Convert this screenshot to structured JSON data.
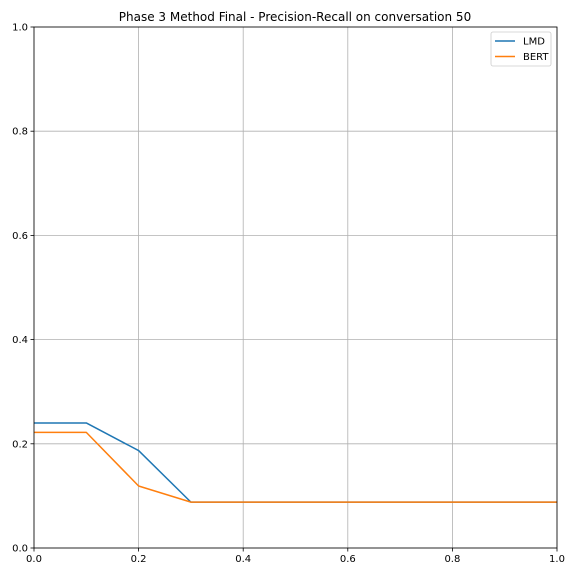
{
  "chart_data": {
    "type": "line",
    "title": "Phase 3 Method Final - Precision-Recall on conversation 50",
    "xlabel": "",
    "ylabel": "",
    "xlim": [
      0,
      1
    ],
    "ylim": [
      0,
      1
    ],
    "xticks": [
      "0.0",
      "0.2",
      "0.4",
      "0.6",
      "0.8",
      "1.0"
    ],
    "yticks": [
      "0.0",
      "0.2",
      "0.4",
      "0.6",
      "0.8",
      "1.0"
    ],
    "grid": true,
    "legend_position": "top-right",
    "series": [
      {
        "name": "LMD",
        "color": "#1f77b4",
        "x": [
          0.0,
          0.1,
          0.2,
          0.3,
          0.4,
          0.5,
          0.6,
          0.7,
          0.8,
          0.9,
          1.0
        ],
        "y": [
          0.24,
          0.24,
          0.187,
          0.088,
          0.088,
          0.088,
          0.088,
          0.088,
          0.088,
          0.088,
          0.088
        ]
      },
      {
        "name": "BERT",
        "color": "#ff7f0e",
        "x": [
          0.0,
          0.1,
          0.2,
          0.3,
          0.4,
          0.5,
          0.6,
          0.7,
          0.8,
          0.9,
          1.0
        ],
        "y": [
          0.222,
          0.222,
          0.119,
          0.088,
          0.088,
          0.088,
          0.088,
          0.088,
          0.088,
          0.088,
          0.088
        ]
      }
    ]
  }
}
